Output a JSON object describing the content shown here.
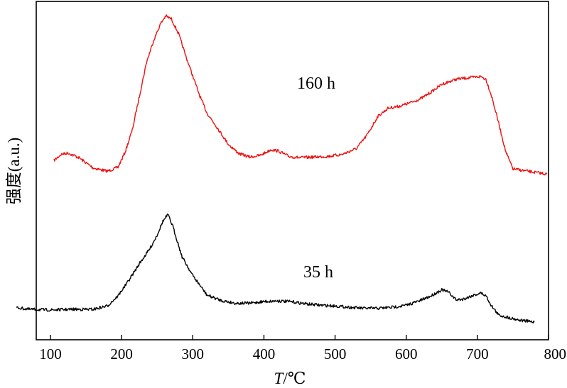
{
  "chart_data": {
    "type": "line",
    "xlabel_italic": "T",
    "xlabel_rest": "/℃",
    "ylabel": "强度(a.u.)",
    "xlim": [
      80,
      800
    ],
    "x_ticks": [
      100,
      200,
      300,
      400,
      500,
      600,
      700,
      800
    ],
    "y_ticks_shown": false,
    "grid": false,
    "series": [
      {
        "name": "160 h",
        "color": "#ee1111",
        "points": [
          [
            105,
            0.53
          ],
          [
            115,
            0.548
          ],
          [
            125,
            0.552
          ],
          [
            140,
            0.538
          ],
          [
            160,
            0.508
          ],
          [
            180,
            0.498
          ],
          [
            195,
            0.51
          ],
          [
            205,
            0.555
          ],
          [
            215,
            0.62
          ],
          [
            225,
            0.72
          ],
          [
            235,
            0.82
          ],
          [
            245,
            0.885
          ],
          [
            255,
            0.935
          ],
          [
            262,
            0.957
          ],
          [
            270,
            0.948
          ],
          [
            280,
            0.905
          ],
          [
            290,
            0.84
          ],
          [
            300,
            0.78
          ],
          [
            310,
            0.72
          ],
          [
            320,
            0.67
          ],
          [
            335,
            0.625
          ],
          [
            350,
            0.578
          ],
          [
            365,
            0.55
          ],
          [
            380,
            0.54
          ],
          [
            395,
            0.545
          ],
          [
            410,
            0.562
          ],
          [
            420,
            0.558
          ],
          [
            435,
            0.542
          ],
          [
            450,
            0.538
          ],
          [
            470,
            0.54
          ],
          [
            490,
            0.542
          ],
          [
            510,
            0.548
          ],
          [
            530,
            0.565
          ],
          [
            545,
            0.605
          ],
          [
            560,
            0.66
          ],
          [
            575,
            0.685
          ],
          [
            590,
            0.69
          ],
          [
            605,
            0.7
          ],
          [
            620,
            0.712
          ],
          [
            635,
            0.732
          ],
          [
            650,
            0.755
          ],
          [
            670,
            0.77
          ],
          [
            690,
            0.775
          ],
          [
            705,
            0.778
          ],
          [
            712,
            0.77
          ],
          [
            720,
            0.72
          ],
          [
            730,
            0.64
          ],
          [
            740,
            0.555
          ],
          [
            750,
            0.505
          ],
          [
            765,
            0.5
          ],
          [
            780,
            0.495
          ],
          [
            798,
            0.49
          ]
        ]
      },
      {
        "name": "35 h",
        "color": "#000000",
        "points": [
          [
            52,
            0.095
          ],
          [
            70,
            0.09
          ],
          [
            100,
            0.088
          ],
          [
            130,
            0.09
          ],
          [
            160,
            0.09
          ],
          [
            180,
            0.1
          ],
          [
            195,
            0.13
          ],
          [
            210,
            0.175
          ],
          [
            225,
            0.225
          ],
          [
            240,
            0.27
          ],
          [
            250,
            0.31
          ],
          [
            258,
            0.35
          ],
          [
            265,
            0.37
          ],
          [
            272,
            0.335
          ],
          [
            285,
            0.245
          ],
          [
            300,
            0.19
          ],
          [
            320,
            0.132
          ],
          [
            340,
            0.116
          ],
          [
            360,
            0.108
          ],
          [
            380,
            0.108
          ],
          [
            400,
            0.113
          ],
          [
            420,
            0.115
          ],
          [
            440,
            0.112
          ],
          [
            460,
            0.106
          ],
          [
            480,
            0.102
          ],
          [
            500,
            0.1
          ],
          [
            520,
            0.096
          ],
          [
            540,
            0.093
          ],
          [
            560,
            0.093
          ],
          [
            580,
            0.096
          ],
          [
            600,
            0.102
          ],
          [
            620,
            0.116
          ],
          [
            635,
            0.13
          ],
          [
            650,
            0.148
          ],
          [
            660,
            0.14
          ],
          [
            670,
            0.118
          ],
          [
            680,
            0.12
          ],
          [
            695,
            0.132
          ],
          [
            705,
            0.138
          ],
          [
            712,
            0.13
          ],
          [
            720,
            0.1
          ],
          [
            730,
            0.073
          ],
          [
            745,
            0.065
          ],
          [
            760,
            0.058
          ],
          [
            780,
            0.052
          ]
        ]
      }
    ]
  }
}
